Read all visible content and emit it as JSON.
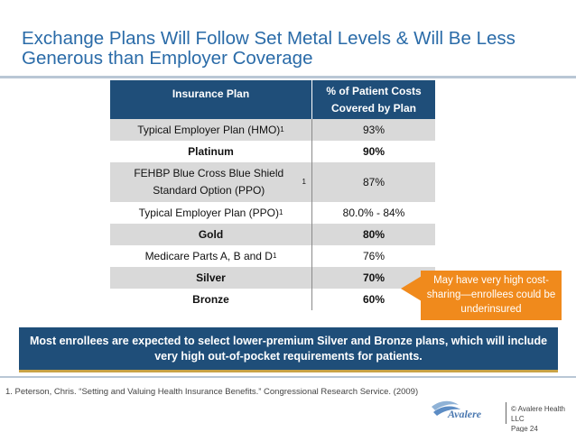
{
  "title": "Exchange Plans Will Follow Set Metal Levels & Will Be Less Generous than Employer Coverage",
  "table": {
    "headers": [
      "Insurance Plan",
      "% of Patient Costs Covered by Plan"
    ],
    "rows": [
      {
        "plan": "Typical Employer Plan (HMO)",
        "sup": "1",
        "value": "93%",
        "shaded": true,
        "bold": false
      },
      {
        "plan": "Platinum",
        "sup": "",
        "value": "90%",
        "shaded": false,
        "bold": true
      },
      {
        "plan": "FEHBP Blue Cross Blue Shield Standard Option (PPO)",
        "sup": "1",
        "value": "87%",
        "shaded": true,
        "bold": false
      },
      {
        "plan": "Typical Employer Plan (PPO)",
        "sup": "1",
        "value": "80.0% - 84%",
        "shaded": false,
        "bold": false
      },
      {
        "plan": "Gold",
        "sup": "",
        "value": "80%",
        "shaded": true,
        "bold": true
      },
      {
        "plan": "Medicare Parts A, B and D",
        "sup": "1",
        "value": "76%",
        "shaded": false,
        "bold": false
      },
      {
        "plan": "Silver",
        "sup": "",
        "value": "70%",
        "shaded": true,
        "bold": true
      },
      {
        "plan": "Bronze",
        "sup": "",
        "value": "60%",
        "shaded": false,
        "bold": true
      }
    ]
  },
  "callout": "May have very high cost-sharing—enrollees could be underinsured",
  "banner": "Most enrollees are expected to select lower-premium Silver and Bronze plans, which will include very high out-of-pocket requirements for patients.",
  "footnote": "1. Peterson, Chris. “Setting and Valuing Health Insurance Benefits.” Congressional Research Service. (2009)",
  "footer": {
    "logo_text": "Avalere",
    "copyright": "© Avalere Health LLC",
    "page": "Page 24"
  },
  "colors": {
    "title": "#2a6ba8",
    "header_bg": "#1f4e79",
    "shade": "#d9d9d9",
    "callout": "#f08a1c",
    "banner_accent": "#c9a347"
  }
}
